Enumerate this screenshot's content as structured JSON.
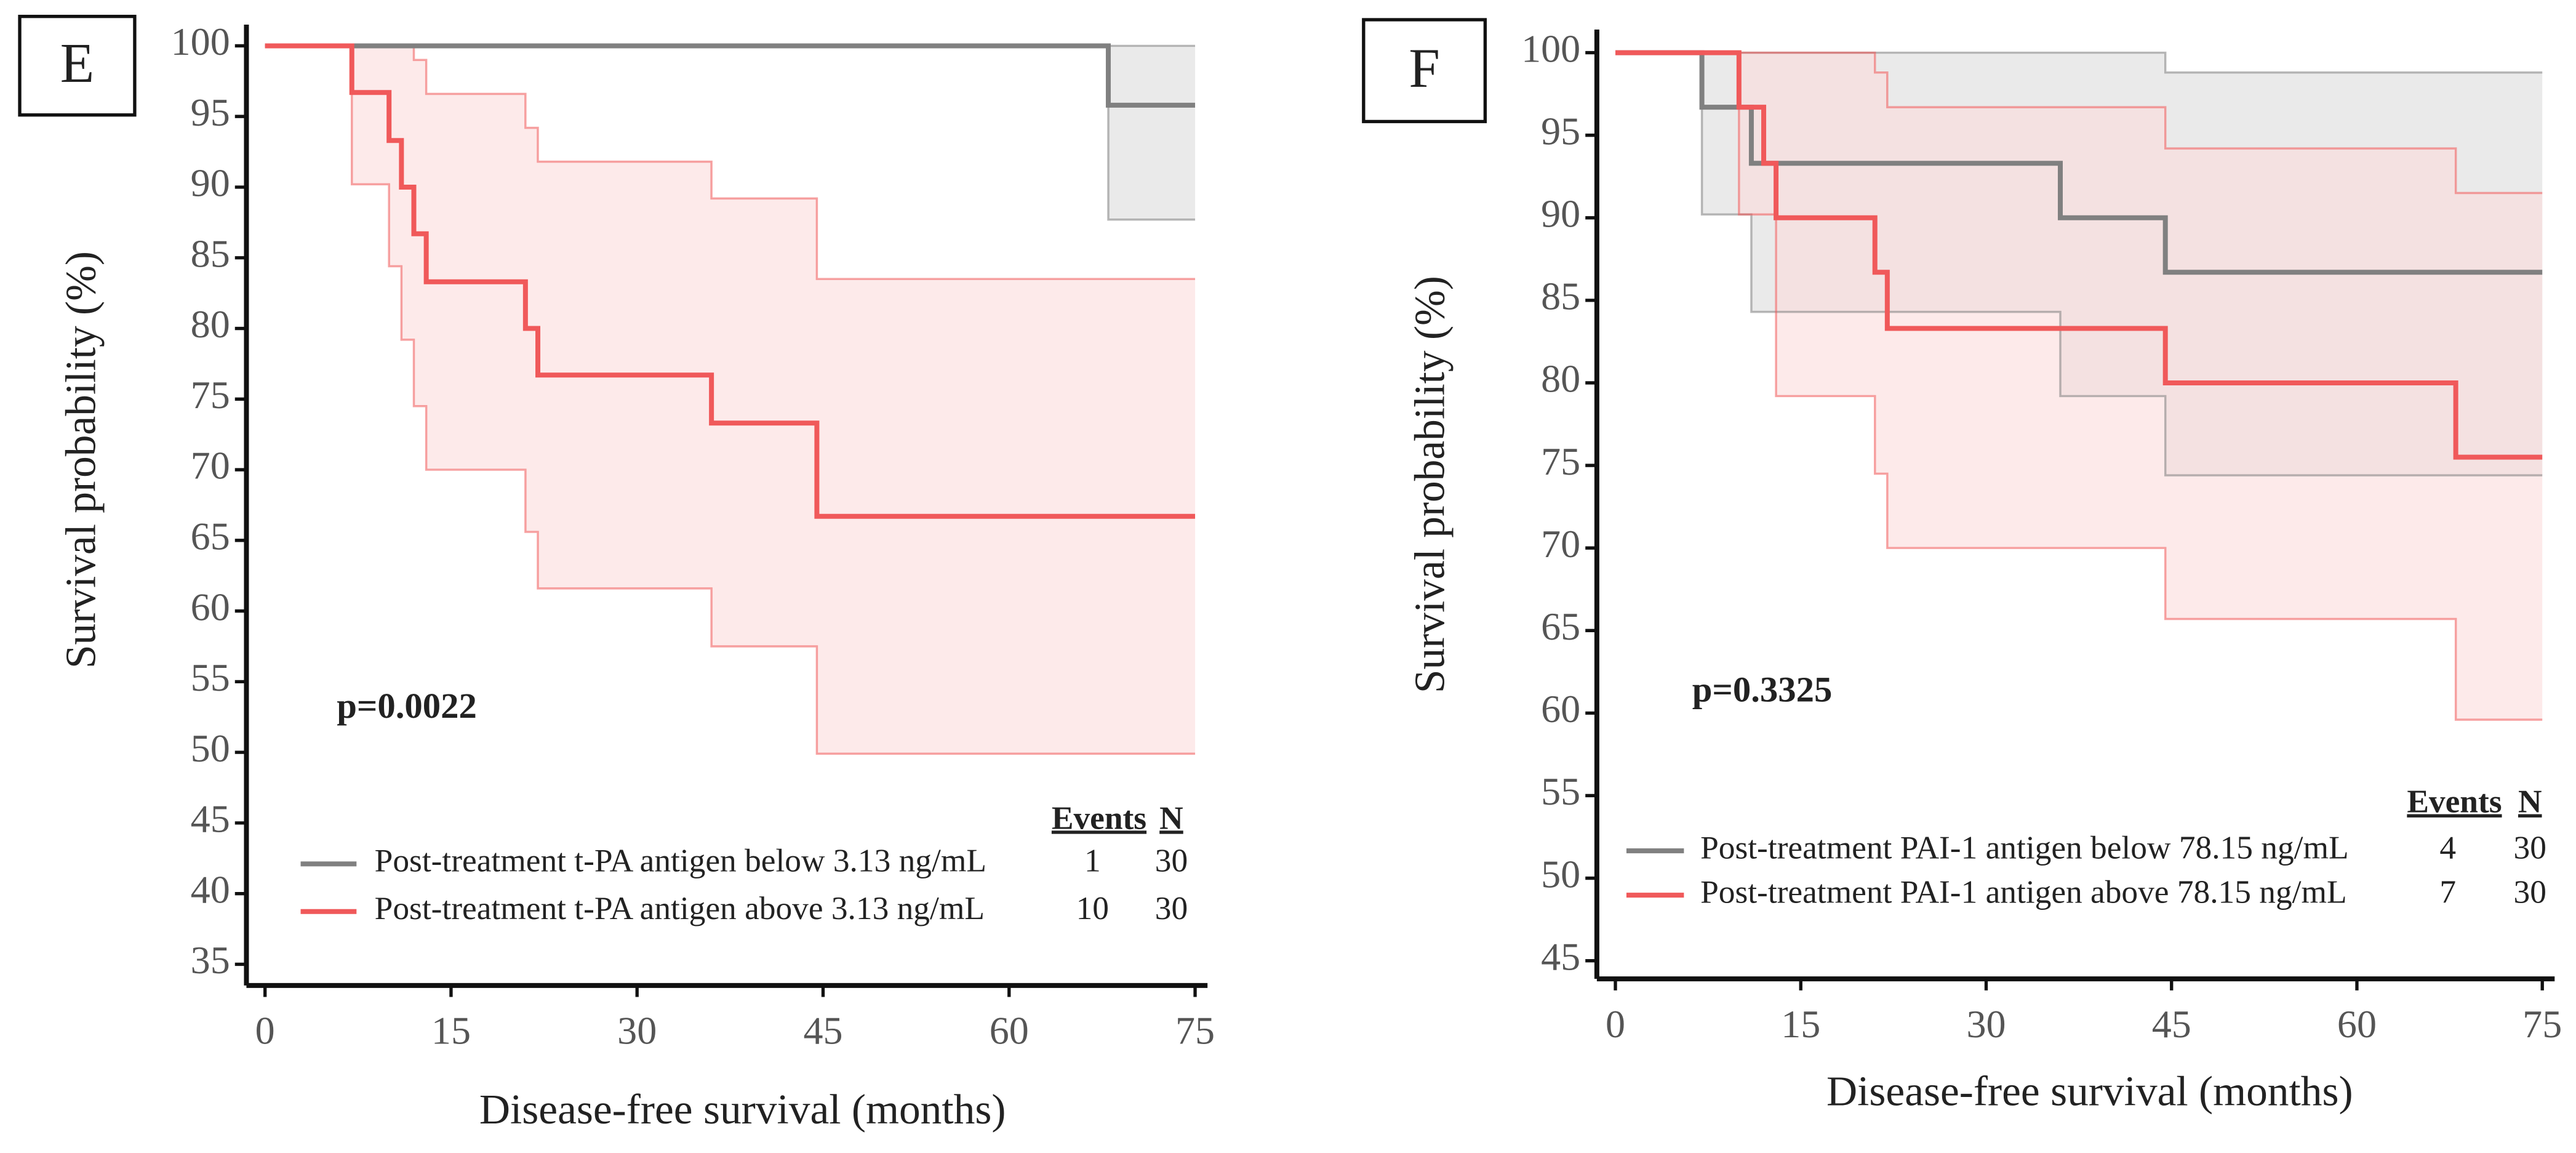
{
  "chart_data": [
    {
      "type": "line",
      "panel_label": "E",
      "xlabel": "Disease-free survival (months)",
      "ylabel": "Survival probability (%)",
      "annotation": "p=0.0022",
      "legend_headers": [
        "Events",
        "N"
      ],
      "xlim": [
        -1.5,
        76
      ],
      "ylim": [
        33.5,
        101.5
      ],
      "xticks": [
        0,
        15,
        30,
        45,
        60,
        75
      ],
      "yticks": [
        35,
        40,
        45,
        50,
        55,
        60,
        65,
        70,
        75,
        80,
        85,
        90,
        95,
        100
      ],
      "series": [
        {
          "name": "Post-treatment t-PA antigen below 3.13 ng/mL",
          "color": "#808080",
          "band_color": "#d9d9d9",
          "events": 1,
          "n": 30,
          "x": [
            0,
            68,
            75
          ],
          "values": [
            100,
            95.8,
            95.8
          ],
          "ci_upper": {
            "x": [
              0,
              75
            ],
            "values": [
              100,
              100
            ]
          },
          "ci_lower": {
            "x": [
              0,
              68,
              75
            ],
            "values": [
              100,
              87.7,
              87.7
            ]
          }
        },
        {
          "name": "Post-treatment t-PA antigen above 3.13 ng/mL",
          "color": "#f0595a",
          "band_color": "#fcd9d9",
          "events": 10,
          "n": 30,
          "x": [
            0,
            7,
            10,
            11,
            12,
            13,
            21,
            22,
            36,
            44.5,
            75
          ],
          "values": [
            100,
            96.7,
            93.3,
            90,
            86.7,
            83.3,
            80,
            76.7,
            73.3,
            66.7,
            66.7
          ],
          "ci_upper": {
            "x": [
              0,
              12,
              13,
              21,
              22,
              36,
              44.5,
              75
            ],
            "values": [
              100,
              99,
              96.6,
              94.2,
              91.8,
              89.2,
              83.5,
              83.5
            ]
          },
          "ci_lower": {
            "x": [
              0,
              7,
              10,
              11,
              12,
              13,
              21,
              22,
              36,
              44.5,
              75
            ],
            "values": [
              100,
              90.2,
              84.4,
              79.2,
              74.5,
              70,
              65.6,
              61.6,
              57.5,
              49.9,
              49.9
            ]
          }
        }
      ]
    },
    {
      "type": "line",
      "panel_label": "F",
      "xlabel": "Disease-free survival (months)",
      "ylabel": "Survival probability (%)",
      "annotation": "p=0.3325",
      "legend_headers": [
        "Events",
        "N"
      ],
      "xlim": [
        -1.5,
        76
      ],
      "ylim": [
        43.9,
        101.4
      ],
      "xticks": [
        0,
        15,
        30,
        45,
        60,
        75
      ],
      "yticks": [
        45,
        50,
        55,
        60,
        65,
        70,
        75,
        80,
        85,
        90,
        95,
        100
      ],
      "series": [
        {
          "name": "Post-treatment PAI-1 antigen below 78.15 ng/mL",
          "color": "#808080",
          "band_color": "#d9d9d9",
          "events": 4,
          "n": 30,
          "x": [
            0,
            7,
            11,
            36,
            44.5,
            75
          ],
          "values": [
            100,
            96.7,
            93.3,
            90,
            86.7,
            86.7
          ],
          "ci_upper": {
            "x": [
              0,
              44.5,
              75
            ],
            "values": [
              100,
              98.8,
              98.8
            ]
          },
          "ci_lower": {
            "x": [
              0,
              7,
              11,
              36,
              44.5,
              75
            ],
            "values": [
              100,
              90.2,
              84.3,
              79.2,
              74.4,
              74.4
            ]
          }
        },
        {
          "name": "Post-treatment PAI-1 antigen above 78.15 ng/mL",
          "color": "#f0595a",
          "band_color": "#fcd9d9",
          "events": 7,
          "n": 30,
          "x": [
            0,
            10,
            12,
            13,
            21,
            22,
            44.5,
            68,
            75
          ],
          "values": [
            100,
            96.7,
            93.3,
            90,
            86.7,
            83.3,
            80,
            75.5,
            75.5
          ],
          "ci_upper": {
            "x": [
              0,
              21,
              22,
              44.5,
              68,
              75
            ],
            "values": [
              100,
              98.8,
              96.7,
              94.2,
              91.5,
              91.5
            ]
          },
          "ci_lower": {
            "x": [
              0,
              10,
              13,
              21,
              22,
              44.5,
              68,
              75
            ],
            "values": [
              100,
              90.2,
              79.2,
              74.5,
              70,
              65.7,
              59.6,
              59.6
            ]
          }
        }
      ]
    }
  ]
}
